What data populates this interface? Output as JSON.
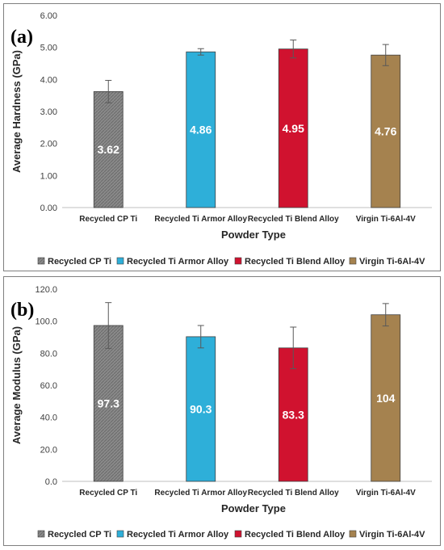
{
  "colors": {
    "Recycled CP Ti": "#7f7f7f",
    "Recycled Ti Armor Alloy": "#2eafd9",
    "Recycled Ti Blend Alloy": "#d0122f",
    "Virgin Ti-6Al-4V": "#a5824f"
  },
  "chart_data": [
    {
      "type": "bar",
      "panel_label": "(a)",
      "categories": [
        "Recycled CP Ti",
        "Recycled Ti Armor Alloy",
        "Recycled Ti Blend Alloy",
        "Virgin Ti-6Al-4V"
      ],
      "values": [
        3.62,
        4.86,
        4.95,
        4.76
      ],
      "value_labels": [
        "3.62",
        "4.86",
        "4.95",
        "4.76"
      ],
      "errors": [
        0.35,
        0.1,
        0.28,
        0.33
      ],
      "xlabel": "Powder Type",
      "ylabel": "Average Hardness (GPa)",
      "ylim": [
        0,
        6
      ],
      "yticks": [
        "0.00",
        "1.00",
        "2.00",
        "3.00",
        "4.00",
        "5.00",
        "6.00"
      ],
      "legend": [
        "Recycled CP Ti",
        "Recycled Ti Armor Alloy",
        "Recycled Ti Blend Alloy",
        "Virgin Ti-6Al-4V"
      ],
      "legend_position": "bottom",
      "grid": false
    },
    {
      "type": "bar",
      "panel_label": "(b)",
      "categories": [
        "Recycled CP Ti",
        "Recycled Ti Armor Alloy",
        "Recycled Ti Blend Alloy",
        "Virgin Ti-6Al-4V"
      ],
      "values": [
        97.3,
        90.3,
        83.3,
        104
      ],
      "value_labels": [
        "97.3",
        "90.3",
        "83.3",
        "104"
      ],
      "errors": [
        14.3,
        7,
        13,
        7
      ],
      "xlabel": "Powder Type",
      "ylabel": "Average Modulus (GPa)",
      "ylim": [
        0,
        120
      ],
      "yticks": [
        "0.0",
        "20.0",
        "40.0",
        "60.0",
        "80.0",
        "100.0",
        "120.0"
      ],
      "legend": [
        "Recycled CP Ti",
        "Recycled Ti Armor Alloy",
        "Recycled Ti Blend Alloy",
        "Virgin Ti-6Al-4V"
      ],
      "legend_position": "bottom",
      "grid": false
    }
  ]
}
